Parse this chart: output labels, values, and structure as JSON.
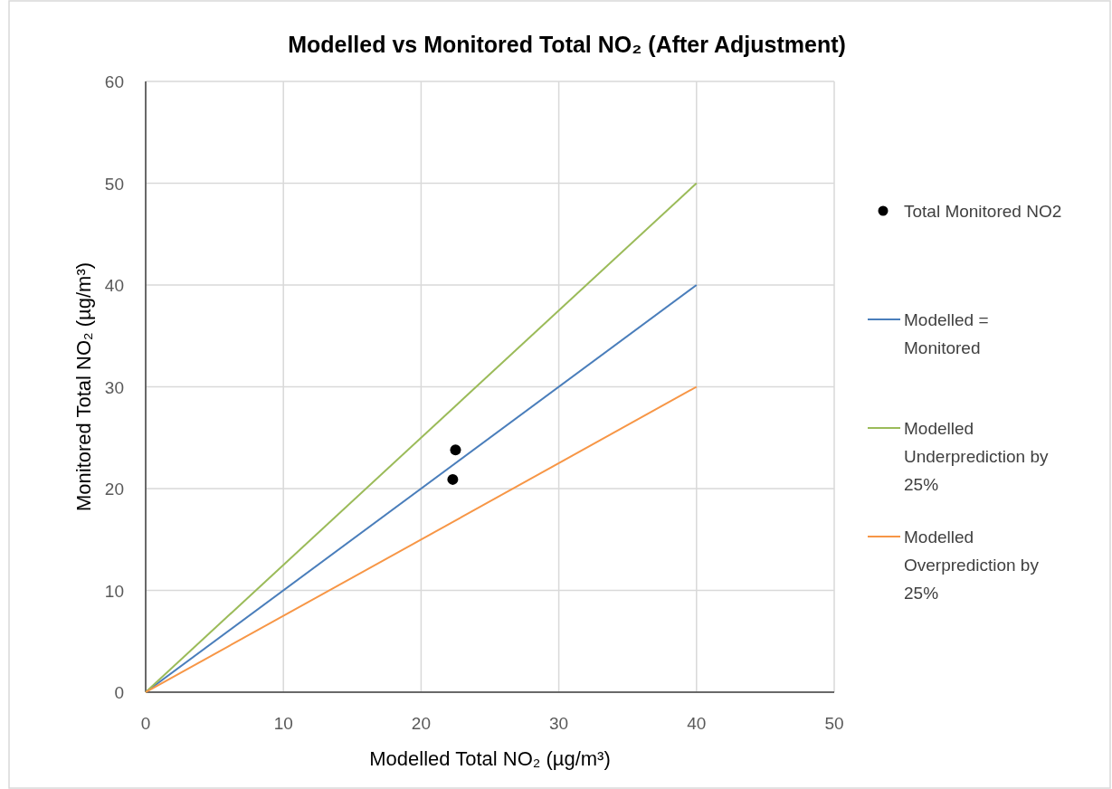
{
  "chart_data": {
    "type": "scatter",
    "title": "Modelled vs Monitored Total NO₂ (After Adjustment)",
    "xlabel": "Modelled Total NO₂ (µg/m³)",
    "ylabel": "Monitored Total NO₂ (µg/m³)",
    "xlim": [
      0,
      50
    ],
    "xticks": [
      0,
      10,
      20,
      30,
      40,
      50
    ],
    "ylim": [
      0,
      60
    ],
    "yticks": [
      0,
      10,
      20,
      30,
      40,
      50,
      60
    ],
    "grid": true,
    "legend": "right",
    "series": [
      {
        "name": "Total Monitored NO2",
        "color": "#000000",
        "marker": "circle",
        "x": [
          22.5,
          22.3
        ],
        "values": [
          23.8,
          20.9
        ]
      },
      {
        "name": "Modelled = Monitored",
        "type": "line",
        "color": "#4a7ebb",
        "x": [
          0,
          40
        ],
        "values": [
          0,
          40
        ]
      },
      {
        "name": "Modelled Underprediction by 25%",
        "type": "line",
        "color": "#9bbb59",
        "x": [
          0,
          40
        ],
        "values": [
          0,
          50
        ]
      },
      {
        "name": "Modelled Overprediction by 25%",
        "type": "line",
        "color": "#f79646",
        "x": [
          0,
          40
        ],
        "values": [
          0,
          30
        ]
      }
    ]
  }
}
